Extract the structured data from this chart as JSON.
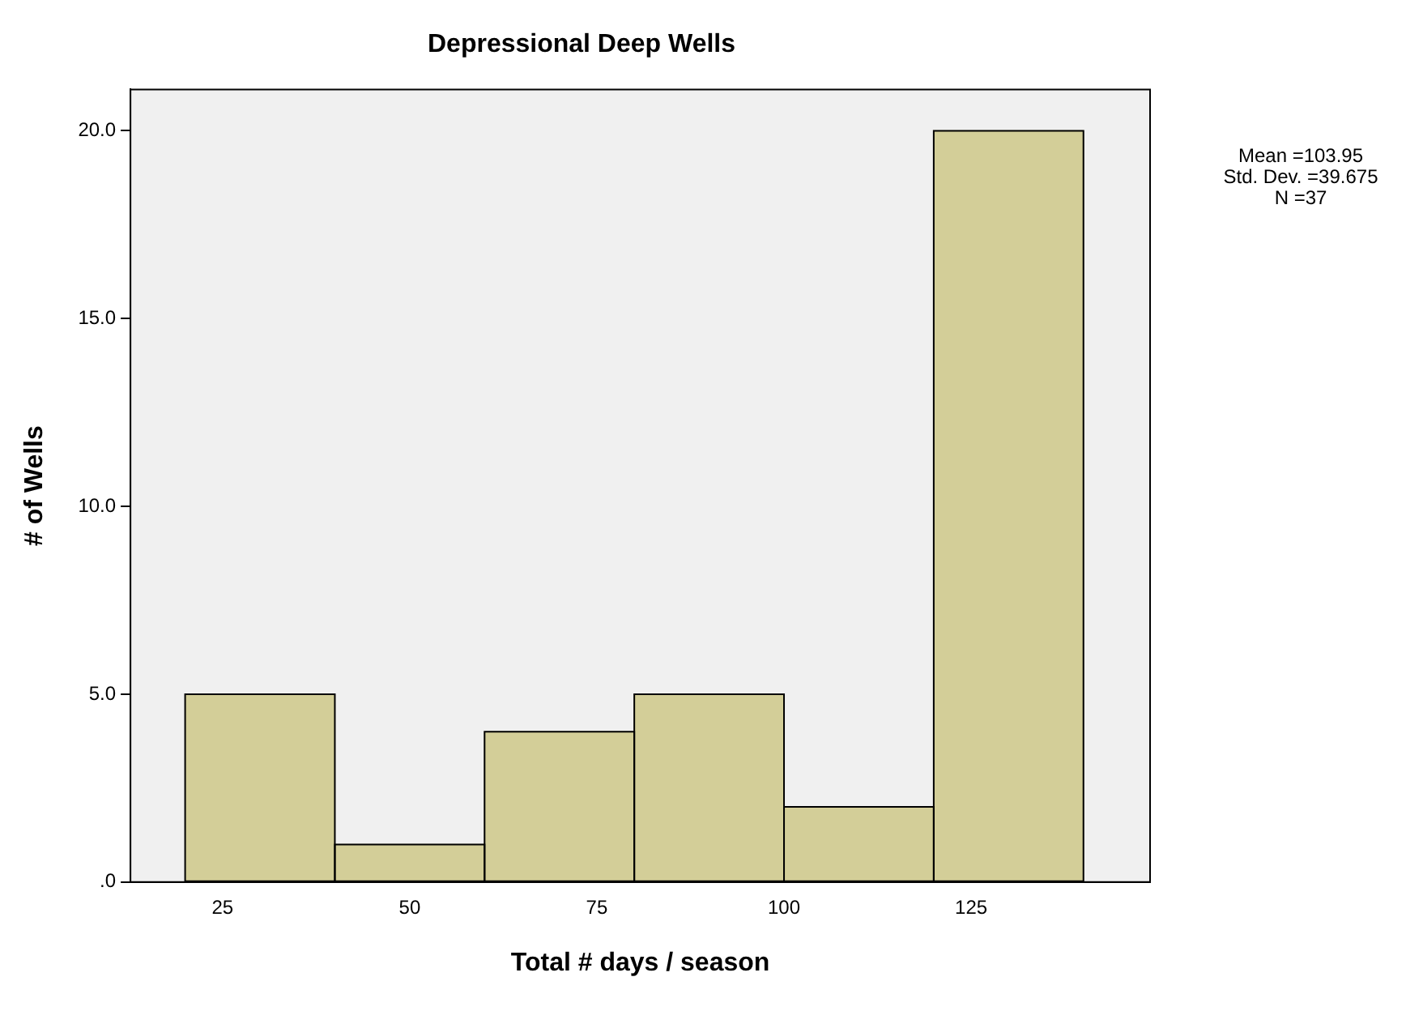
{
  "chart_data": {
    "type": "histogram",
    "title": "Depressional Deep Wells",
    "xlabel": "Total # days / season",
    "ylabel": "# of Wells",
    "bins": [
      20,
      40,
      60,
      80,
      100,
      120,
      140
    ],
    "values": [
      5,
      1,
      4,
      5,
      2,
      20
    ],
    "color": "#d3ce98",
    "xlim": [
      12.7,
      148.9
    ],
    "xticks": [
      25,
      50,
      75,
      100,
      125
    ],
    "ylim": [
      0,
      21.1
    ],
    "yticks": [
      {
        "value": 0,
        "label": ".0"
      },
      {
        "value": 5,
        "label": "5.0"
      },
      {
        "value": 10,
        "label": "10.0"
      },
      {
        "value": 15,
        "label": "15.0"
      },
      {
        "value": 20,
        "label": "20.0"
      }
    ],
    "grid": false,
    "legend": false,
    "annotations": [
      "Mean =103.95",
      "Std. Dev. =39.675",
      "N =37"
    ]
  }
}
